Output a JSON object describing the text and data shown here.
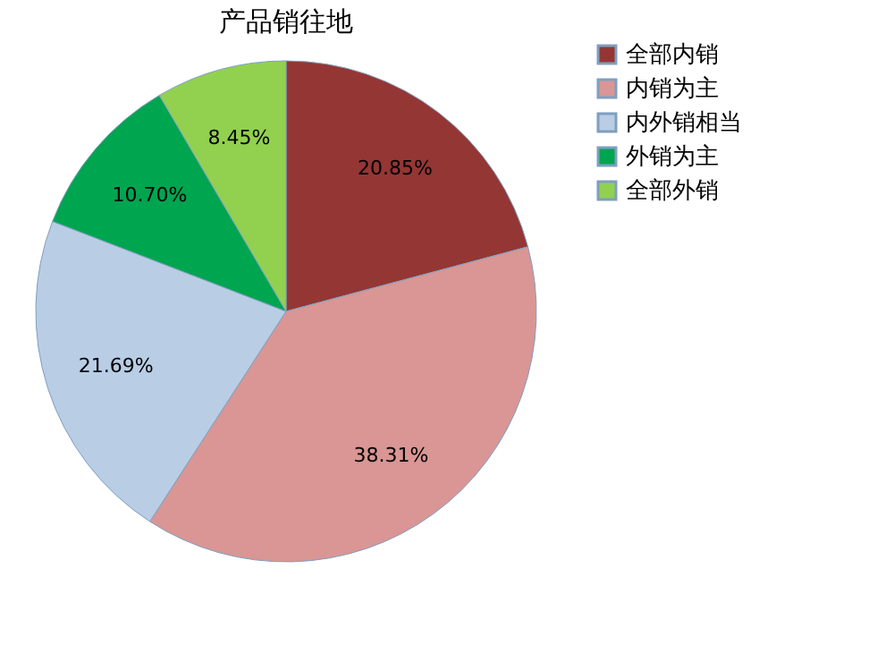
{
  "chart_data": {
    "type": "pie",
    "title": "产品销往地",
    "categories": [
      "全部内销",
      "内销为主",
      "内外销相当",
      "外销为主",
      "全部外销"
    ],
    "values": [
      20.85,
      38.31,
      21.69,
      10.7,
      8.45
    ],
    "value_labels": [
      "20.85%",
      "38.31%",
      "21.69%",
      "10.70%",
      "8.45%"
    ],
    "colors": [
      "#943634",
      "#d99694",
      "#b9cde5",
      "#00a550",
      "#92d050"
    ],
    "legend": "right"
  }
}
